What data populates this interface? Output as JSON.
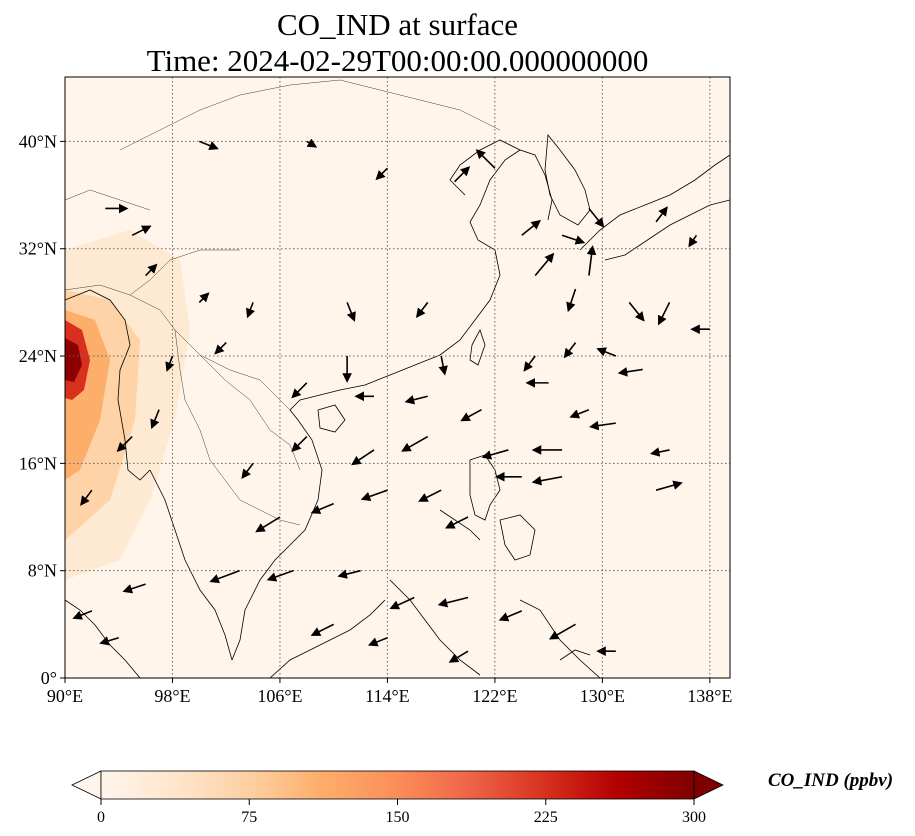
{
  "figure": {
    "title_line1": "CO_IND at surface",
    "title_line2": "Time: 2024-02-29T00:00:00.000000000"
  },
  "map": {
    "lon_range": [
      90,
      139.5
    ],
    "lat_range": [
      0,
      44.8
    ],
    "lon_ticks": [
      {
        "value": 90,
        "label": "90°E"
      },
      {
        "value": 98,
        "label": "98°E"
      },
      {
        "value": 106,
        "label": "106°E"
      },
      {
        "value": 114,
        "label": "114°E"
      },
      {
        "value": 122,
        "label": "122°E"
      },
      {
        "value": 130,
        "label": "130°E"
      },
      {
        "value": 138,
        "label": "138°E"
      }
    ],
    "lat_ticks": [
      {
        "value": 0,
        "label": "0°"
      },
      {
        "value": 8,
        "label": "8°N"
      },
      {
        "value": 16,
        "label": "16°N"
      },
      {
        "value": 24,
        "label": "24°N"
      },
      {
        "value": 32,
        "label": "32°N"
      },
      {
        "value": 40,
        "label": "40°N"
      }
    ],
    "gridlines": true,
    "background_color": "#fff5eb",
    "coastline_color": "#000000",
    "wind_vectors": [
      [
        93,
        35,
        1.2,
        0
      ],
      [
        95,
        33,
        1,
        0.5
      ],
      [
        100,
        40,
        1,
        -0.4
      ],
      [
        108,
        40,
        0.5,
        -0.3
      ],
      [
        114,
        38,
        -0.6,
        -0.6
      ],
      [
        119,
        37,
        0.8,
        0.8
      ],
      [
        122,
        38,
        -1,
        1
      ],
      [
        124,
        33,
        1,
        0.8
      ],
      [
        127,
        33,
        1.2,
        -0.4
      ],
      [
        129,
        35,
        0.8,
        -1
      ],
      [
        134,
        34,
        0.6,
        0.8
      ],
      [
        137,
        33,
        -0.4,
        -0.6
      ],
      [
        96,
        30,
        0.6,
        0.6
      ],
      [
        100,
        28,
        0.5,
        0.5
      ],
      [
        104,
        28,
        -0.3,
        -0.8
      ],
      [
        111,
        28,
        0.4,
        -1
      ],
      [
        117,
        28,
        -0.6,
        -0.8
      ],
      [
        125,
        30,
        1,
        1.2
      ],
      [
        128,
        29,
        -0.4,
        -1.2
      ],
      [
        129,
        30,
        0.2,
        1.6
      ],
      [
        132,
        28,
        0.8,
        -1
      ],
      [
        135,
        28,
        -0.6,
        -1.2
      ],
      [
        138,
        26,
        -1,
        0
      ],
      [
        108,
        22,
        -0.8,
        -0.8
      ],
      [
        111,
        24,
        0,
        -1.4
      ],
      [
        113,
        21,
        -1,
        0
      ],
      [
        117,
        21,
        -1.2,
        -0.3
      ],
      [
        121,
        20,
        -1.1,
        -0.6
      ],
      [
        126,
        22,
        -1.2,
        0
      ],
      [
        129,
        20,
        -1,
        -0.4
      ],
      [
        131,
        19,
        -1.4,
        -0.2
      ],
      [
        135,
        17,
        -1,
        -0.2
      ],
      [
        123,
        17,
        -1.4,
        -0.4
      ],
      [
        127,
        17,
        -1.6,
        0
      ],
      [
        106,
        12,
        -1.3,
        -0.8
      ],
      [
        110,
        13,
        -1.2,
        -0.5
      ],
      [
        114,
        14,
        -1.4,
        -0.5
      ],
      [
        118,
        14,
        -1.2,
        -0.6
      ],
      [
        124,
        15,
        -1.4,
        0
      ],
      [
        127,
        15,
        -1.6,
        -0.3
      ],
      [
        134,
        14,
        1.4,
        0.4
      ],
      [
        103,
        8,
        -1.6,
        -0.6
      ],
      [
        107,
        8,
        -1.4,
        -0.5
      ],
      [
        112,
        8,
        -1.2,
        -0.3
      ],
      [
        116,
        6,
        -1.3,
        -0.6
      ],
      [
        120,
        6,
        -1.6,
        -0.4
      ],
      [
        124,
        5,
        -1.2,
        -0.5
      ],
      [
        96,
        7,
        -1.2,
        -0.4
      ],
      [
        92,
        5,
        -1,
        -0.4
      ],
      [
        94,
        3,
        -1,
        -0.3
      ],
      [
        110,
        4,
        -1.2,
        -0.6
      ],
      [
        114,
        3,
        -1,
        -0.4
      ],
      [
        120,
        2,
        -1,
        -0.6
      ],
      [
        128,
        4,
        -1.4,
        -0.8
      ],
      [
        131,
        2,
        -1,
        0
      ],
      [
        104,
        16,
        -0.6,
        -0.8
      ],
      [
        108,
        18,
        -0.8,
        -0.8
      ],
      [
        113,
        17,
        -1.2,
        -0.8
      ],
      [
        117,
        18,
        -1.4,
        -0.8
      ],
      [
        120,
        12,
        -1.2,
        -0.6
      ],
      [
        95,
        18,
        -0.8,
        -0.8
      ],
      [
        97,
        20,
        -0.4,
        -1
      ],
      [
        92,
        14,
        -0.6,
        -0.8
      ],
      [
        131,
        24,
        -1,
        0.4
      ],
      [
        133,
        23,
        -1.3,
        -0.2
      ],
      [
        128,
        25,
        -0.6,
        -0.8
      ],
      [
        125,
        24,
        -0.6,
        -0.8
      ],
      [
        98,
        24,
        -0.3,
        -0.8
      ],
      [
        102,
        25,
        -0.6,
        -0.6
      ],
      [
        118,
        24,
        0.2,
        -1
      ]
    ]
  },
  "colorbar": {
    "label": "CO_IND (ppbv)",
    "min": 0,
    "max": 300,
    "extend": "both",
    "ticks": [
      "0",
      "75",
      "150",
      "225",
      "300"
    ],
    "tick_values": [
      0,
      75,
      150,
      225,
      300
    ],
    "colormap": "OrRd-like",
    "colors": [
      "#fff5eb",
      "#fee6ce",
      "#fdd0a2",
      "#fdae6b",
      "#fd8d3c",
      "#f16913",
      "#d94801",
      "#a60f08",
      "#7f0000"
    ]
  }
}
